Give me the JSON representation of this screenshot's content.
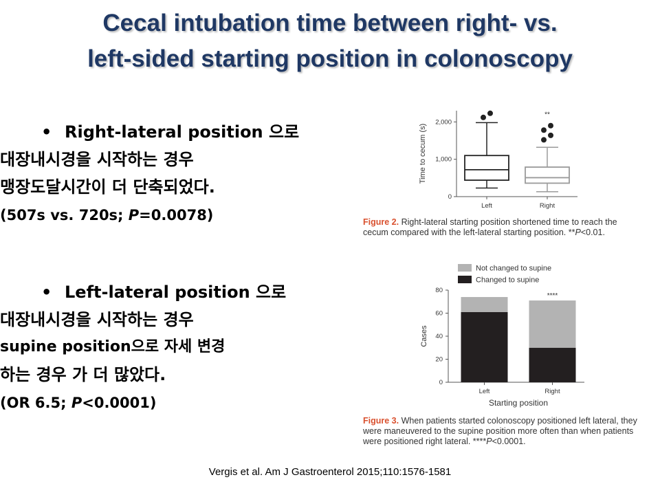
{
  "title": {
    "line1": "Cecal intubation time between right- vs.",
    "line2": "left-sided starting position in colonoscopy"
  },
  "bullets": [
    {
      "marker": "•",
      "lines": [
        "Right-lateral position 으로",
        "대장내시경을 시작하는 경우",
        "맹장도달시간이 더 단축되었다."
      ],
      "stat_prefix": "(507s vs. 720s; ",
      "stat_p": "P",
      "stat_suffix": "=0.0078)"
    },
    {
      "marker": "•",
      "lines": [
        "Left-lateral position 으로",
        "대장내시경을 시작하는 경우",
        "supine position으로 자세 변경",
        "하는 경우 가 더 많았다."
      ],
      "stat_prefix": "(OR 6.5; ",
      "stat_p": "P",
      "stat_suffix": "<0.0001)"
    }
  ],
  "figure2": {
    "label": "Figure 2.",
    "caption": " Right-lateral starting position shortened time to reach the cecum compared with the left-lateral starting position. **",
    "caption_p": "P",
    "caption_end": "<0.01.",
    "chart_data": {
      "type": "box",
      "ylabel": "Time to cecum (s)",
      "ylim": [
        0,
        2300
      ],
      "yticks": [
        "0",
        "1,000",
        "2,000"
      ],
      "categories": [
        "Left",
        "Right"
      ],
      "boxes": [
        {
          "name": "Left",
          "whisker_low": 230,
          "q1": 440,
          "median": 720,
          "q3": 1100,
          "whisker_high": 1980,
          "outliers": [
            2120,
            2230
          ],
          "fill": "#ffffff",
          "stroke": "#222222"
        },
        {
          "name": "Right",
          "whisker_low": 130,
          "q1": 360,
          "median": 507,
          "q3": 790,
          "whisker_high": 1320,
          "outliers": [
            1520,
            1640,
            1780,
            1900
          ],
          "fill": "#ffffff",
          "stroke": "#9a9a9a"
        }
      ],
      "annotation": "**"
    }
  },
  "figure3": {
    "label": "Figure 3.",
    "caption": " When patients started colonoscopy positioned left lateral, they were maneuvered to the supine position more often than when patients were positioned right lateral. ****",
    "caption_p": "P",
    "caption_end": "<0.0001.",
    "chart_data": {
      "type": "bar",
      "stacked": true,
      "xlabel": "Starting position",
      "ylabel": "Cases",
      "ylim": [
        0,
        80
      ],
      "yticks": [
        "0",
        "20",
        "40",
        "60",
        "80"
      ],
      "categories": [
        "Left",
        "Right"
      ],
      "series": [
        {
          "name": "Changed to supine",
          "values": [
            61,
            30
          ],
          "color": "#231f20"
        },
        {
          "name": "Not changed to supine",
          "values": [
            13,
            41
          ],
          "color": "#b3b3b3"
        }
      ],
      "legend": "top",
      "annotation": "****"
    }
  },
  "citation": "Vergis et al. Am J Gastroenterol 2015;110:1576-1581",
  "colors": {
    "title": "#1f3864",
    "figure_label": "#d9502e"
  }
}
